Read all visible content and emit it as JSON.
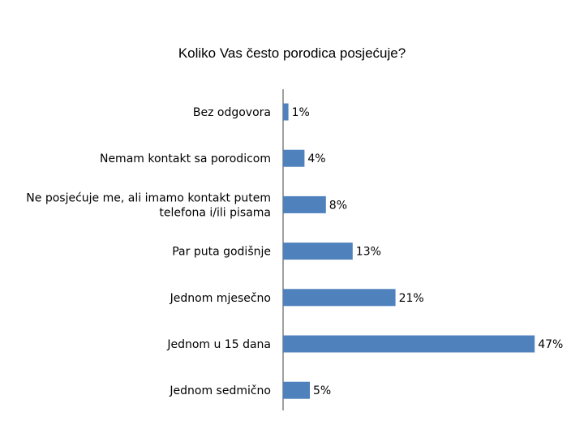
{
  "chart_data": {
    "type": "bar",
    "orientation": "horizontal",
    "title": "Koliko Vas često porodica posjećuje?",
    "xlabel": "",
    "ylabel": "",
    "categories": [
      "Bez odgovora",
      "Nemam kontakt sa porodicom",
      "Ne posjećuje me, ali imamo kontakt putem telefona i/ili pisama",
      "Par puta godišnje",
      "Jednom mjesečno",
      "Jednom u 15 dana",
      "Jednom sedmično"
    ],
    "category_label_lines": [
      [
        "Bez odgovora"
      ],
      [
        "Nemam kontakt sa porodicom"
      ],
      [
        "Ne posjećuje me, ali imamo kontakt putem",
        "telefona i/ili pisama"
      ],
      [
        "Par puta godišnje"
      ],
      [
        "Jednom mjesečno"
      ],
      [
        "Jednom u 15 dana"
      ],
      [
        "Jednom sedmično"
      ]
    ],
    "values": [
      1,
      4,
      8,
      13,
      21,
      47,
      5
    ],
    "data_labels": [
      "1%",
      "4%",
      "8%",
      "13%",
      "21%",
      "47%",
      "5%"
    ],
    "unit": "%",
    "xlim": [
      0,
      47
    ],
    "grid": false,
    "legend": "none",
    "bar_color": "#4f81bd"
  }
}
